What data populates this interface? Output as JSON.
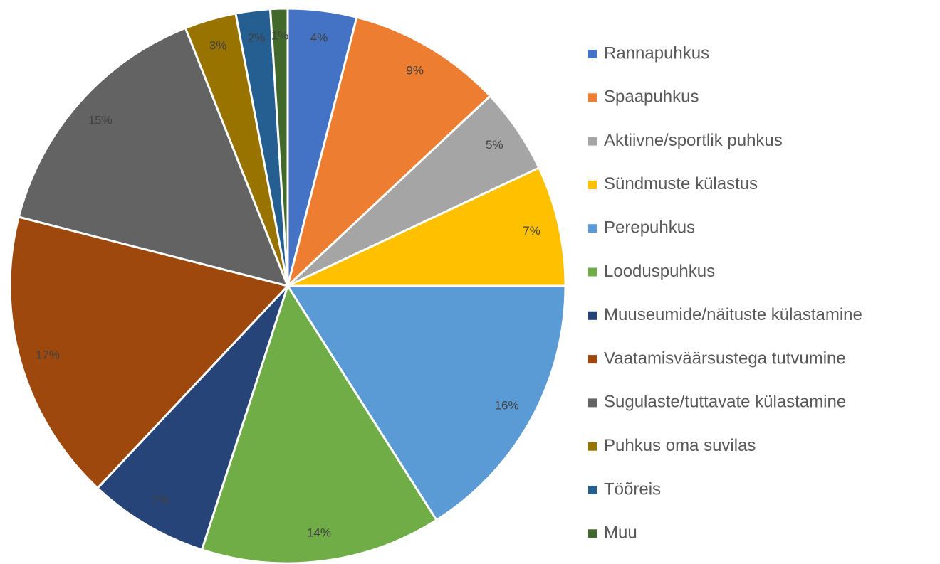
{
  "chart_data": {
    "type": "pie",
    "categories": [
      "Rannapuhkus",
      "Spaapuhkus",
      "Aktiivne/sportlik puhkus",
      "Sündmuste külastus",
      "Perepuhkus",
      "Looduspuhkus",
      "Muuseumide/näituste külastamine",
      "Vaatamisväärsustega tutvumine",
      "Sugulaste/tuttavate külastamine",
      "Puhkus oma suvilas",
      "Töõreis",
      "Muu"
    ],
    "values": [
      4,
      9,
      5,
      7,
      16,
      14,
      7,
      17,
      15,
      3,
      2,
      1
    ],
    "value_labels": [
      "4%",
      "9%",
      "5%",
      "7%",
      "16%",
      "14%",
      "7%",
      "17%",
      "15%",
      "3%",
      "2%",
      "1%"
    ],
    "colors": [
      "#4472c4",
      "#ed7d31",
      "#a5a5a5",
      "#ffc000",
      "#5b9bd5",
      "#70ad47",
      "#264478",
      "#9e480e",
      "#636363",
      "#997300",
      "#255e91",
      "#43682b"
    ],
    "legend": "right"
  }
}
